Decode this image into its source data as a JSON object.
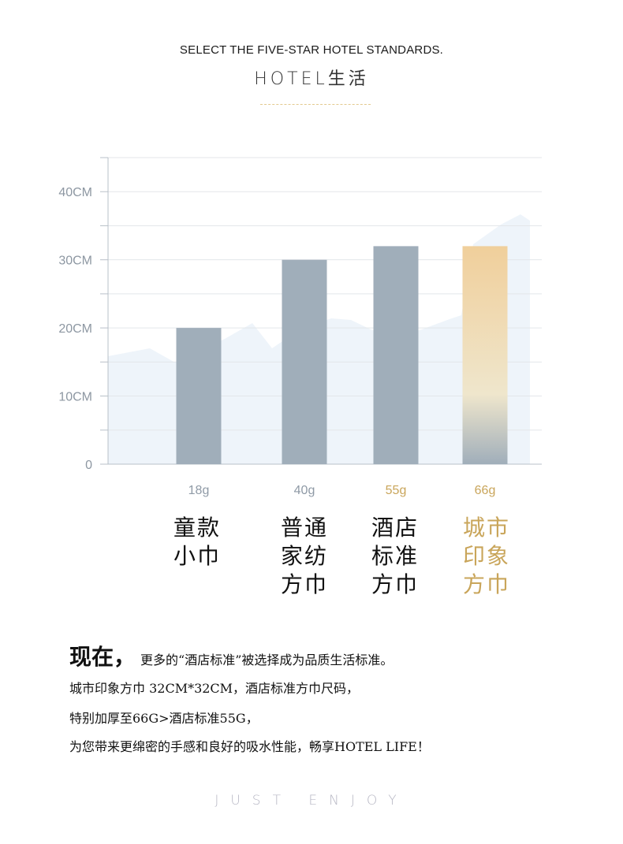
{
  "header": {
    "title_en": "SELECT THE FIVE-STAR HOTEL STANDARDS.",
    "title_cn": "HOTEL生活"
  },
  "colors": {
    "bar": "#a0aeba",
    "highlight": "#c9a55a",
    "highlight_top": "#f0cf9b",
    "grid": "#e3e6ea",
    "axis_text": "#8d97a2",
    "weight_text": "#8f9aa6",
    "background_area": "#eef4fa"
  },
  "chart_data": {
    "type": "bar",
    "ylim": [
      0,
      45
    ],
    "yticks": [
      {
        "value": 0,
        "label": "0"
      },
      {
        "value": 10,
        "label": "10CM"
      },
      {
        "value": 20,
        "label": "20CM"
      },
      {
        "value": 30,
        "label": "30CM"
      },
      {
        "value": 40,
        "label": "40CM"
      }
    ],
    "minor_step": 5,
    "grid": true,
    "series": [
      {
        "values": [
          20,
          30,
          32,
          32
        ],
        "weights": [
          "18g",
          "40g",
          "55g",
          "66g"
        ]
      }
    ],
    "categories": [
      [
        "童款",
        "小巾"
      ],
      [
        "普通",
        "家纺",
        "方巾"
      ],
      [
        "酒店",
        "标准",
        "方巾"
      ],
      [
        "城市",
        "印象",
        "方巾"
      ]
    ],
    "highlight_index": 3,
    "weight_gold_from_index": 2
  },
  "description": {
    "line1_big": "现在，",
    "line1_rest": "更多的“酒店标准”被选择成为品质生活标准。",
    "line2": "城市印象方巾 32CM*32CM，酒店标准方巾尺码，",
    "line3": "特别加厚至66G>酒店标准55G，",
    "line4": "为您带来更绵密的手感和良好的吸水性能，畅享HOTEL LIFE！"
  },
  "footer": {
    "tagline": "JUST ENJOY"
  }
}
